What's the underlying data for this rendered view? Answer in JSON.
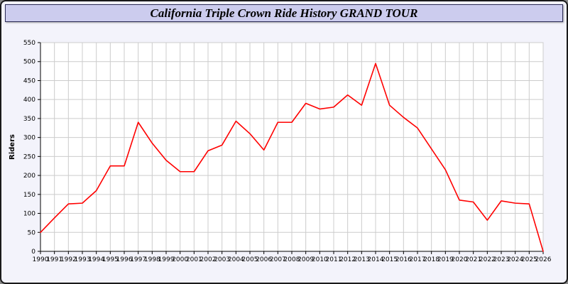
{
  "title": "California Triple Crown Ride History GRAND TOUR",
  "chart_data": {
    "type": "line",
    "title": "California Triple Crown Ride History GRAND TOUR",
    "xlabel": "",
    "ylabel": "Riders",
    "ylim": [
      0,
      550
    ],
    "ytick_step": 50,
    "grid": true,
    "legend_position": "none",
    "x": [
      1990,
      1991,
      1992,
      1993,
      1994,
      1995,
      1996,
      1997,
      1998,
      1999,
      2000,
      2001,
      2002,
      2003,
      2004,
      2005,
      2006,
      2007,
      2008,
      2009,
      2010,
      2011,
      2012,
      2013,
      2014,
      2015,
      2016,
      2017,
      2018,
      2019,
      2020,
      2021,
      2022,
      2023,
      2024,
      2025,
      2026
    ],
    "series": [
      {
        "name": "Riders",
        "color": "#ff0000",
        "values": [
          50,
          88,
          125,
          127,
          160,
          225,
          225,
          340,
          285,
          240,
          210,
          210,
          265,
          280,
          343,
          310,
          267,
          340,
          340,
          390,
          375,
          380,
          412,
          385,
          495,
          385,
          353,
          325,
          270,
          215,
          135,
          130,
          82,
          133,
          127,
          125,
          0
        ]
      }
    ]
  },
  "colors": {
    "page_bg": "#f3f3fb",
    "titlebar_bg": "#ccccee",
    "titlebar_border": "#2b2b55",
    "plot_bg": "#ffffff",
    "grid": "#cccccc",
    "axis": "#000000",
    "tick_label": "#000000",
    "line": "#ff0000"
  }
}
